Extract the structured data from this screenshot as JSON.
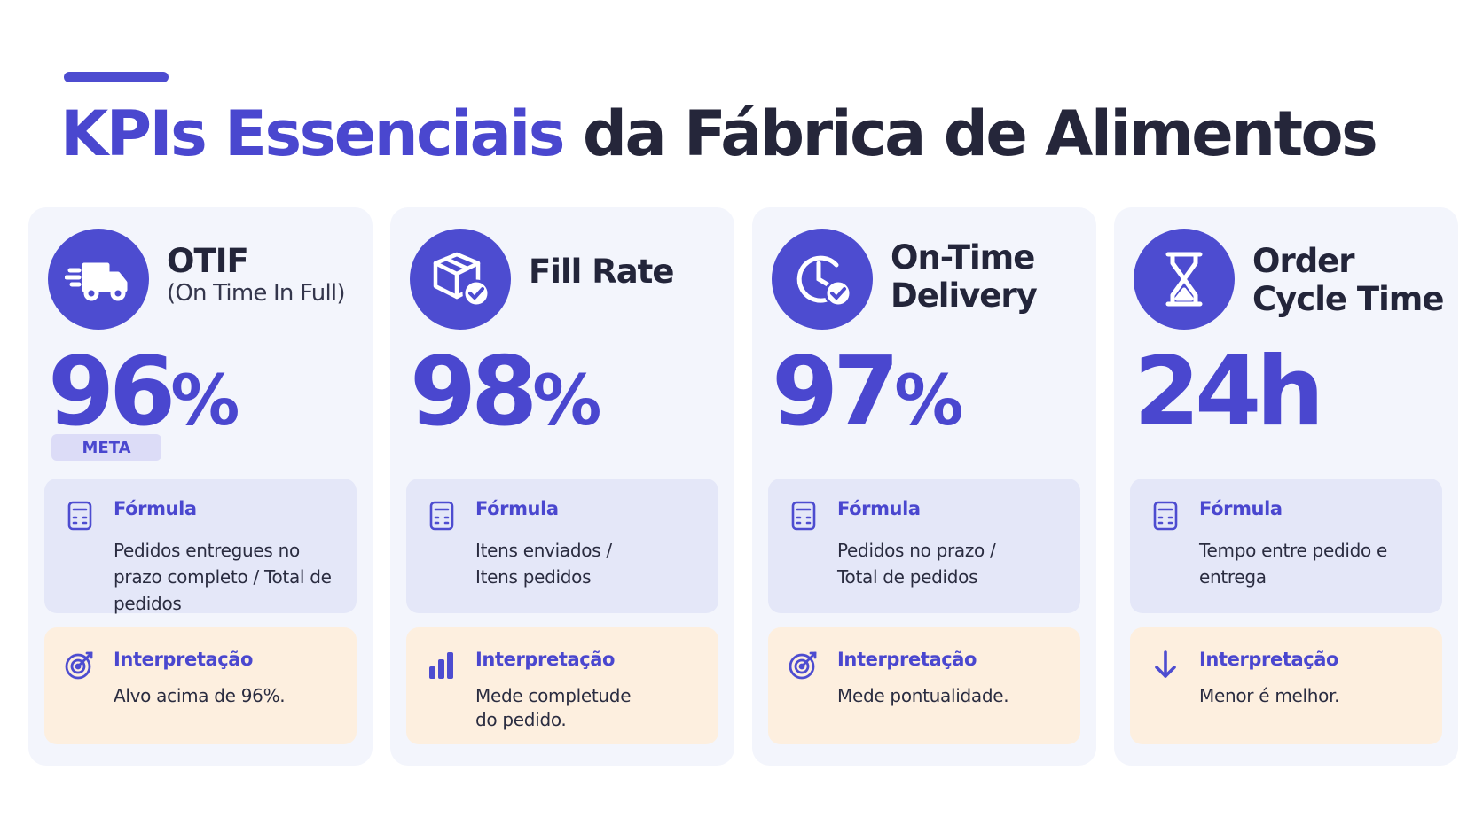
{
  "header": {
    "title_highlight": "KPIs Essenciais",
    "title_rest": " da Fábrica de Alimentos"
  },
  "colors": {
    "accent": "#4d4cd0",
    "card_bg": "#f3f5fc",
    "formula_bg": "#e4e7f8",
    "interpretation_bg": "#fdefdf"
  },
  "cards": [
    {
      "icon": "truck-icon",
      "title": "OTIF",
      "subtitle": "(On Time In Full)",
      "value": "96",
      "unit": "%",
      "badge": "META",
      "formula_label": "Fórmula",
      "formula_text": "Pedidos entregues no prazo completo / Total de pedidos",
      "formula_icon": "calculator-icon",
      "interpretation_label": "Interpretação",
      "interpretation_text": "Alvo acima de 96%.",
      "interpretation_icon": "target-icon"
    },
    {
      "icon": "box-check-icon",
      "title": "Fill Rate",
      "value": "98",
      "unit": "%",
      "formula_label": "Fórmula",
      "formula_text": "Itens enviados / Itens pedidos",
      "formula_icon": "calculator-icon",
      "interpretation_label": "Interpretação",
      "interpretation_text": "Mede completude do pedido.",
      "interpretation_icon": "bar-chart-icon"
    },
    {
      "icon": "clock-check-icon",
      "title_line1": "On-Time",
      "title_line2": "Delivery",
      "value": "97",
      "unit": "%",
      "formula_label": "Fórmula",
      "formula_text": "Pedidos no prazo / Total de pedidos",
      "formula_icon": "calculator-icon",
      "interpretation_label": "Interpretação",
      "interpretation_text": "Mede pontualidade.",
      "interpretation_icon": "target-icon"
    },
    {
      "icon": "hourglass-icon",
      "title_line1": "Order",
      "title_line2": "Cycle Time",
      "value": "24h",
      "formula_label": "Fórmula",
      "formula_text": "Tempo entre pedido e entrega",
      "formula_icon": "calculator-icon",
      "interpretation_label": "Interpretação",
      "interpretation_text": "Menor é melhor.",
      "interpretation_icon": "arrow-down-icon"
    }
  ]
}
